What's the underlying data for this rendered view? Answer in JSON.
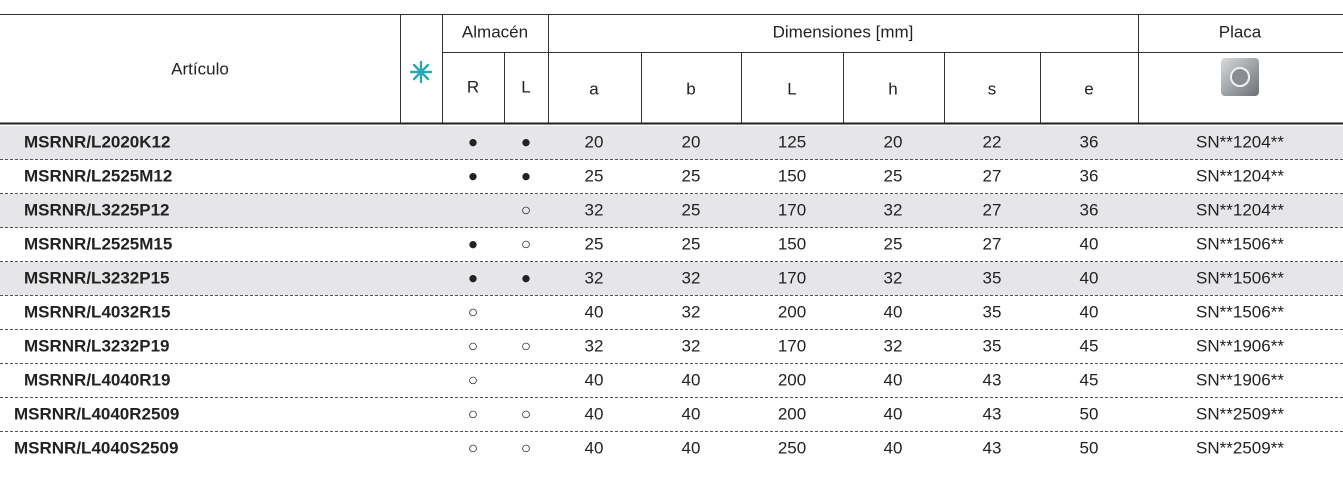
{
  "header": {
    "article": "Artículo",
    "stock": "Almacén",
    "stock_cols": [
      "R",
      "L"
    ],
    "dimensions": "Dimensiones [mm]",
    "dimension_cols": [
      "a",
      "b",
      "L",
      "h",
      "s",
      "e"
    ],
    "insert": "Placa"
  },
  "table": {
    "rows": [
      [
        "MSRNR/L2020K12",
        "●",
        "●",
        20,
        20,
        125,
        20,
        22,
        36,
        "SN**1204**"
      ],
      [
        "MSRNR/L2525M12",
        "●",
        "●",
        25,
        25,
        150,
        25,
        27,
        36,
        "SN**1204**"
      ],
      [
        "MSRNR/L3225P12",
        null,
        "○",
        32,
        25,
        170,
        32,
        27,
        36,
        "SN**1204**"
      ],
      [
        "MSRNR/L2525M15",
        "●",
        "○",
        25,
        25,
        150,
        25,
        27,
        40,
        "SN**1506**"
      ],
      [
        "MSRNR/L3232P15",
        "●",
        "●",
        32,
        32,
        170,
        32,
        35,
        40,
        "SN**1506**"
      ],
      [
        "MSRNR/L4032R15",
        "○",
        null,
        40,
        32,
        200,
        40,
        35,
        40,
        "SN**1506**"
      ],
      [
        "MSRNR/L3232P19",
        "○",
        "○",
        32,
        32,
        170,
        32,
        35,
        45,
        "SN**1906**"
      ],
      [
        "MSRNR/L4040R19",
        "○",
        null,
        40,
        40,
        200,
        40,
        43,
        45,
        "SN**1906**"
      ],
      [
        "MSRNR/L4040R2509",
        "○",
        "○",
        40,
        40,
        200,
        40,
        43,
        50,
        "SN**2509**"
      ],
      [
        "MSRNR/L4040S2509",
        "○",
        "○",
        40,
        40,
        250,
        40,
        43,
        50,
        "SN**2509**"
      ]
    ]
  }
}
